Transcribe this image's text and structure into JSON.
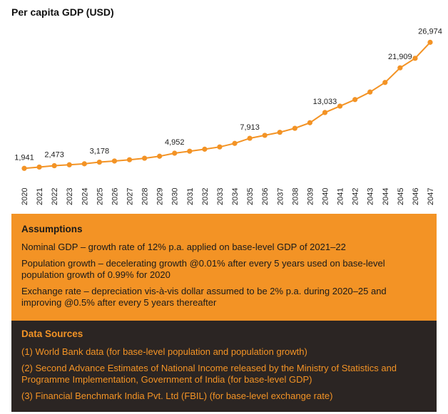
{
  "chart_data": {
    "type": "line",
    "title": "Per capita GDP (USD)",
    "xlabel": "",
    "ylabel": "",
    "ylim": [
      0,
      30000
    ],
    "grid": false,
    "color": "#F39325",
    "x": [
      "2020",
      "2021",
      "2022",
      "2023",
      "2024",
      "2025",
      "2026",
      "2027",
      "2028",
      "2029",
      "2030",
      "2031",
      "2032",
      "2033",
      "2034",
      "2035",
      "2036",
      "2037",
      "2038",
      "2039",
      "2040",
      "2041",
      "2042",
      "2043",
      "2044",
      "2045",
      "2046",
      "2047"
    ],
    "values": [
      1941,
      2200,
      2473,
      2650,
      2850,
      3178,
      3400,
      3650,
      3950,
      4350,
      4952,
      5350,
      5750,
      6200,
      6900,
      7913,
      8500,
      9100,
      9900,
      11000,
      13033,
      14300,
      15600,
      17100,
      19000,
      21909,
      23800,
      26974
    ],
    "labels": [
      {
        "year": "2020",
        "text": "1,941"
      },
      {
        "year": "2022",
        "text": "2,473"
      },
      {
        "year": "2025",
        "text": "3,178"
      },
      {
        "year": "2030",
        "text": "4,952"
      },
      {
        "year": "2035",
        "text": "7,913"
      },
      {
        "year": "2040",
        "text": "13,033"
      },
      {
        "year": "2045",
        "text": "21,909"
      },
      {
        "year": "2047",
        "text": "26,974"
      }
    ]
  },
  "assumptions": {
    "heading": "Assumptions",
    "items": [
      "Nominal GDP – growth rate of 12% p.a. applied on base-level GDP of 2021–22",
      "Population growth – decelerating growth @0.01% after every 5 years used on base-level population growth of 0.99% for 2020",
      "Exchange rate – depreciation vis-à-vis dollar assumed to be 2% p.a. during 2020–25 and improving @0.5% after every 5 years thereafter"
    ]
  },
  "sources": {
    "heading": "Data Sources",
    "items": [
      "(1) World Bank data (for base-level population and population growth)",
      "(2) Second Advance Estimates of National Income released by the Ministry of Statistics and Programme Implementation, Government of India (for base-level GDP)",
      "(3) Financial Benchmark India Pvt. Ltd (FBIL) (for base-level exchange rate)"
    ]
  }
}
